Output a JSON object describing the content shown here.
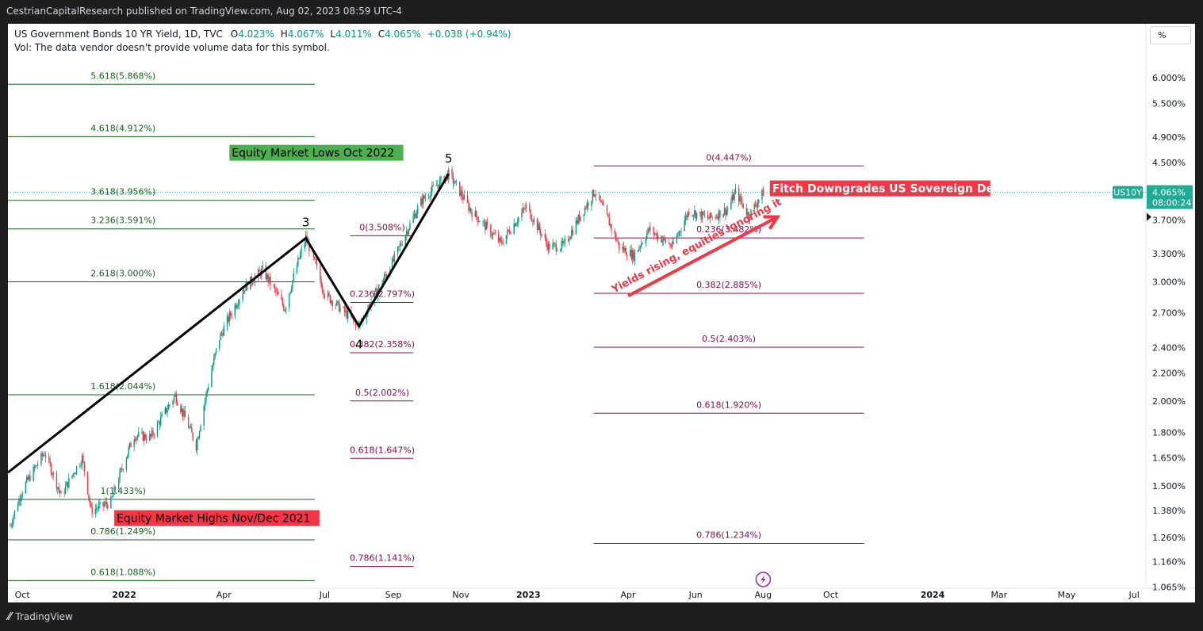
{
  "header": {
    "published": "CestrianCapitalResearch published on TradingView.com, Aug 02, 2023 08:59 UTC-4"
  },
  "legend": {
    "symbol": "US Government Bonds 10 YR Yield, 1D, TVC",
    "o_label": "O",
    "o_value": "4.023%",
    "h_label": "H",
    "h_value": "4.067%",
    "l_label": "L",
    "l_value": "4.011%",
    "c_label": "C",
    "c_value": "4.065%",
    "change": "+0.038 (+0.94%)",
    "vol_line": "Vol: The data vendor doesn't provide volume data for this symbol."
  },
  "scale_button": "%",
  "footer": {
    "brand": "TradingView"
  },
  "colors": {
    "up": "#089981",
    "down": "#f23645",
    "fib_left": "#1b5e20",
    "fib_right": "#880e4f",
    "axis_text": "#131722",
    "wave": "#000000",
    "price_badge": "#22ab94"
  },
  "chart_data": {
    "type": "candlestick",
    "title": "US Government Bonds 10 YR Yield, 1D, TVC",
    "y_scale": "log",
    "ylim": [
      1.06,
      6.7
    ],
    "x_range": [
      "2021-09-18",
      "2024-08-25"
    ],
    "x_ticks": [
      {
        "label": "Oct",
        "date": "2021-10-01"
      },
      {
        "label": "2022",
        "date": "2022-01-01"
      },
      {
        "label": "Apr",
        "date": "2022-04-01"
      },
      {
        "label": "Jul",
        "date": "2022-07-01"
      },
      {
        "label": "Sep",
        "date": "2022-09-01"
      },
      {
        "label": "Nov",
        "date": "2022-11-01"
      },
      {
        "label": "2023",
        "date": "2023-01-01"
      },
      {
        "label": "Apr",
        "date": "2023-04-01"
      },
      {
        "label": "Jun",
        "date": "2023-06-01"
      },
      {
        "label": "Aug",
        "date": "2023-08-01"
      },
      {
        "label": "Oct",
        "date": "2023-10-01"
      },
      {
        "label": "2024",
        "date": "2024-01-01"
      },
      {
        "label": "Mar",
        "date": "2024-03-01"
      },
      {
        "label": "May",
        "date": "2024-05-01"
      },
      {
        "label": "Jul",
        "date": "2024-07-01"
      }
    ],
    "y_ticks": [
      {
        "label": "6.000%",
        "value": 6.0
      },
      {
        "label": "5.500%",
        "value": 5.5
      },
      {
        "label": "4.900%",
        "value": 4.9
      },
      {
        "label": "4.500%",
        "value": 4.5
      },
      {
        "label": "3.700%",
        "value": 3.7
      },
      {
        "label": "3.300%",
        "value": 3.3
      },
      {
        "label": "3.000%",
        "value": 3.0
      },
      {
        "label": "2.700%",
        "value": 2.7
      },
      {
        "label": "2.400%",
        "value": 2.4
      },
      {
        "label": "2.200%",
        "value": 2.2
      },
      {
        "label": "2.000%",
        "value": 2.0
      },
      {
        "label": "1.800%",
        "value": 1.8
      },
      {
        "label": "1.650%",
        "value": 1.65
      },
      {
        "label": "1.500%",
        "value": 1.5
      },
      {
        "label": "1.380%",
        "value": 1.38
      },
      {
        "label": "1.260%",
        "value": 1.26
      },
      {
        "label": "1.160%",
        "value": 1.16
      },
      {
        "label": "1.065%",
        "value": 1.065
      }
    ],
    "last_price": {
      "value": 4.065,
      "ticker": "US10Y",
      "price_label": "4.065%",
      "countdown": "08:00:24"
    },
    "price_path": [
      [
        "2021-09-20",
        1.31
      ],
      [
        "2021-10-01",
        1.48
      ],
      [
        "2021-10-21",
        1.68
      ],
      [
        "2021-11-05",
        1.45
      ],
      [
        "2021-11-24",
        1.65
      ],
      [
        "2021-12-02",
        1.38
      ],
      [
        "2021-12-20",
        1.42
      ],
      [
        "2022-01-10",
        1.78
      ],
      [
        "2022-01-25",
        1.77
      ],
      [
        "2022-02-16",
        2.04
      ],
      [
        "2022-03-07",
        1.72
      ],
      [
        "2022-03-28",
        2.48
      ],
      [
        "2022-04-20",
        2.95
      ],
      [
        "2022-05-06",
        3.12
      ],
      [
        "2022-05-26",
        2.74
      ],
      [
        "2022-06-14",
        3.48
      ],
      [
        "2022-07-01",
        2.88
      ],
      [
        "2022-08-01",
        2.58
      ],
      [
        "2022-08-31",
        3.19
      ],
      [
        "2022-09-27",
        3.96
      ],
      [
        "2022-10-21",
        4.33
      ],
      [
        "2022-11-01",
        4.05
      ],
      [
        "2022-11-10",
        3.82
      ],
      [
        "2022-12-07",
        3.42
      ],
      [
        "2022-12-30",
        3.87
      ],
      [
        "2023-01-19",
        3.38
      ],
      [
        "2023-02-02",
        3.39
      ],
      [
        "2023-03-02",
        4.08
      ],
      [
        "2023-03-24",
        3.38
      ],
      [
        "2023-04-06",
        3.28
      ],
      [
        "2023-04-20",
        3.58
      ],
      [
        "2023-05-11",
        3.38
      ],
      [
        "2023-05-26",
        3.82
      ],
      [
        "2023-06-13",
        3.72
      ],
      [
        "2023-06-30",
        3.84
      ],
      [
        "2023-07-07",
        4.07
      ],
      [
        "2023-07-19",
        3.75
      ],
      [
        "2023-08-01",
        4.065
      ]
    ],
    "elliott_waves": [
      {
        "label": "",
        "points": [
          [
            "2021-09-18",
            1.57
          ],
          [
            "2022-06-14",
            3.48
          ]
        ]
      },
      {
        "label": "3",
        "date": "2022-06-14",
        "value": 3.48
      },
      {
        "label": "4",
        "date": "2022-08-01",
        "value": 2.58
      },
      {
        "label": "5",
        "date": "2022-10-21",
        "value": 4.33
      }
    ],
    "fib_sets": [
      {
        "name": "fib-left",
        "start": "2021-09-18",
        "end": "2022-06-22",
        "label_date": "2021-12-31",
        "levels": [
          {
            "label": "5.618(5.868%)",
            "value": 5.868
          },
          {
            "label": "4.618(4.912%)",
            "value": 4.912
          },
          {
            "label": "3.618(3.956%)",
            "value": 3.956
          },
          {
            "label": "3.236(3.591%)",
            "value": 3.591
          },
          {
            "label": "2.618(3.000%)",
            "value": 3.0
          },
          {
            "label": "1.618(2.044%)",
            "value": 2.044
          },
          {
            "label": "1(1.433%)",
            "value": 1.433
          },
          {
            "label": "0.786(1.249%)",
            "value": 1.249
          },
          {
            "label": "0.618(1.088%)",
            "value": 1.088
          }
        ]
      },
      {
        "name": "fib-middle",
        "start": "2022-07-24",
        "end": "2022-09-19",
        "label_date": "2022-08-22",
        "levels": [
          {
            "label": "0(3.508%)",
            "value": 3.508
          },
          {
            "label": "0.236(2.797%)",
            "value": 2.797
          },
          {
            "label": "0.382(2.358%)",
            "value": 2.358
          },
          {
            "label": "0.5(2.002%)",
            "value": 2.002
          },
          {
            "label": "0.618(1.647%)",
            "value": 1.647
          },
          {
            "label": "0.786(1.141%)",
            "value": 1.141
          }
        ]
      },
      {
        "name": "fib-right",
        "start": "2023-03-01",
        "end": "2023-10-31",
        "label_date": "2023-07-01",
        "levels": [
          {
            "label": "0(4.447%)",
            "value": 4.447
          },
          {
            "label": "0.236(3.482%)",
            "value": 3.482
          },
          {
            "label": "0.382(2.885%)",
            "value": 2.885
          },
          {
            "label": "0.5(2.403%)",
            "value": 2.403
          },
          {
            "label": "0.618(1.920%)",
            "value": 1.92
          },
          {
            "label": "0.786(1.234%)",
            "value": 1.234
          }
        ]
      }
    ],
    "annotations": [
      {
        "text": "Equity Market Lows Oct 2022",
        "date": "2022-04-06",
        "value": 4.65,
        "bg": "#4caf50",
        "fg": "#000000"
      },
      {
        "text": "Equity Market Highs Nov/Dec 2021",
        "date": "2021-12-23",
        "value": 1.345,
        "bg": "#f23645",
        "fg": "#000000"
      },
      {
        "text": "Fitch Downgrades US Sovereign Debt",
        "date": "2023-08-07",
        "value": 4.12,
        "bg": "#f23645",
        "fg": "#ffffff"
      }
    ],
    "arrow": {
      "text": "Yields rising, equities ignoring it",
      "from": [
        "2023-04-01",
        2.86
      ],
      "to": [
        "2023-08-14",
        3.74
      ],
      "color": "#f23645"
    },
    "event_icon": {
      "name": "lightning-icon",
      "date": "2023-08-01",
      "value": 1.092
    }
  }
}
